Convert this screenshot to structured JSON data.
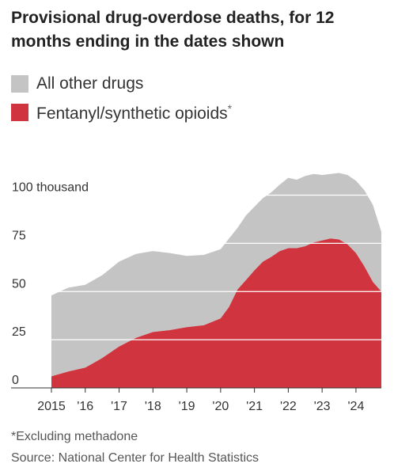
{
  "title": "Provisional drug-overdose deaths, for 12 months ending in the dates shown",
  "legend": {
    "other": "All other drugs",
    "fentanyl": "Fentanyl/synthetic opioids",
    "fentanyl_mark": "*"
  },
  "footnote": "*Excluding methadone",
  "source": "Source: National Center for Health Statistics",
  "colors": {
    "other": "#c4c4c4",
    "fentanyl": "#d0343f",
    "grid": "#ffffff"
  },
  "chart_data": {
    "type": "area",
    "stacked": true,
    "ylim": [
      0,
      115
    ],
    "xlim": [
      2015,
      2024.75
    ],
    "y_ticks": [
      0,
      25,
      50,
      75,
      100
    ],
    "y_tick_labels": [
      "0",
      "25",
      "50",
      "75",
      "100 thousand"
    ],
    "x_ticks": [
      2015,
      2016,
      2017,
      2018,
      2019,
      2020,
      2021,
      2022,
      2023,
      2024
    ],
    "x_tick_labels": [
      "2015",
      "'16",
      "'17",
      "'18",
      "'19",
      "'20",
      "'21",
      "'22",
      "'23",
      "'24"
    ],
    "x": [
      2015,
      2015.5,
      2016,
      2016.5,
      2017,
      2017.5,
      2018,
      2018.5,
      2019,
      2019.5,
      2020,
      2020.25,
      2020.5,
      2020.75,
      2021,
      2021.25,
      2021.5,
      2021.75,
      2022,
      2022.25,
      2022.5,
      2022.75,
      2023,
      2023.25,
      2023.5,
      2023.75,
      2024,
      2024.25,
      2024.5,
      2024.75
    ],
    "series": [
      {
        "name": "Fentanyl/synthetic opioids",
        "values": [
          6,
          8.5,
          10.5,
          15.5,
          21.5,
          26,
          29,
          30,
          31.5,
          32.5,
          36,
          42,
          51,
          56,
          61,
          65.5,
          68,
          71,
          72.5,
          72.5,
          73.5,
          75.5,
          76.5,
          77.5,
          77,
          74.5,
          70,
          63,
          55,
          50
        ]
      },
      {
        "name": "All other drugs",
        "values": [
          42,
          43.5,
          43,
          43,
          44,
          43.5,
          42,
          40,
          37,
          36.5,
          36,
          35.5,
          32,
          33.5,
          33,
          33,
          33.5,
          34.5,
          36.5,
          35.5,
          36.5,
          35.5,
          34,
          33.5,
          34.5,
          36,
          37.5,
          39.5,
          40,
          31
        ]
      }
    ]
  }
}
